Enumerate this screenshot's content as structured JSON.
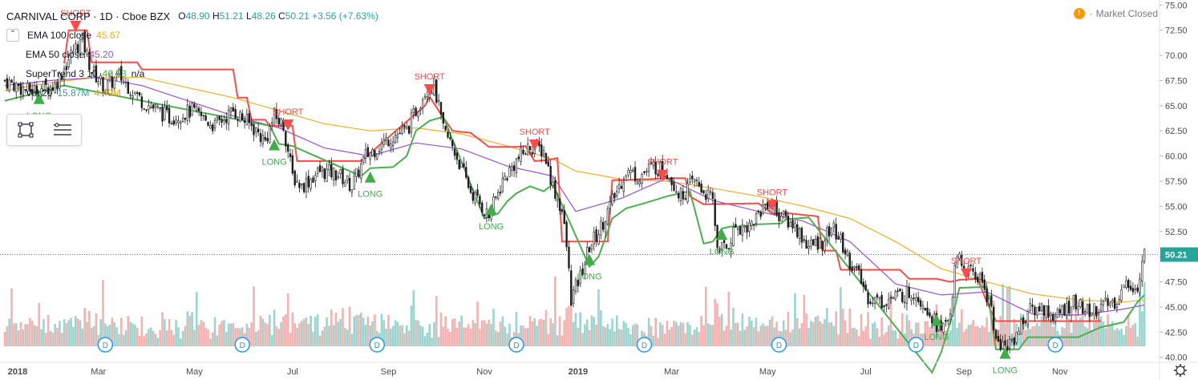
{
  "header": {
    "title": "CARNIVAL CORP · 1D · Cboe BZX",
    "ohlc": [
      {
        "label": "O",
        "value": "48.90"
      },
      {
        "label": "H",
        "value": "51.21"
      },
      {
        "label": "L",
        "value": "48.26"
      },
      {
        "label": "C",
        "value": "50.21"
      }
    ],
    "change": "+3.56 (+7.63%)"
  },
  "indicators": [
    {
      "name": "EMA 100 close",
      "value": "45.67",
      "color": "#f0b02a"
    },
    {
      "name": "EMA 50 close",
      "value": "45.20",
      "color": "#9c4fd6"
    },
    {
      "name": "SuperTrend 3 10",
      "value": "46.23",
      "value2": "n/a",
      "color": "#4caf50"
    },
    {
      "name": "Vol 20",
      "value": "15.87M",
      "value2": "4.49M",
      "color": "#26a69a",
      "color2": "#ff9800"
    }
  ],
  "market_status": {
    "label": "Market Closed",
    "icon": "alert-icon"
  },
  "colors": {
    "up": "#26a69a",
    "down": "#ef5350",
    "st_up": "#4caf50",
    "st_down": "#ff4a4a",
    "ema100": "#f0b02a",
    "ema50": "#9c4fd6",
    "last_price": "#26a69a"
  },
  "chart_data": {
    "type": "candlestick",
    "symbol": "CARNIVAL CORP",
    "interval": "1D",
    "exchange": "Cboe BZX",
    "last_price": "50.21",
    "y_axis": {
      "ticks": [
        "75.00",
        "72.50",
        "70.00",
        "67.50",
        "65.00",
        "62.50",
        "60.00",
        "57.50",
        "55.00",
        "52.50",
        "50.00",
        "47.50",
        "45.00",
        "42.50",
        "40.00"
      ],
      "range": [
        39.5,
        75.5
      ]
    },
    "x_axis": {
      "labels": [
        {
          "label": "2018",
          "bold": true,
          "t": 0
        },
        {
          "label": "Mar",
          "bold": false,
          "t": 41
        },
        {
          "label": "May",
          "bold": false,
          "t": 83
        },
        {
          "label": "Jul",
          "bold": false,
          "t": 126
        },
        {
          "label": "Sep",
          "bold": false,
          "t": 168
        },
        {
          "label": "Nov",
          "bold": false,
          "t": 210
        },
        {
          "label": "2019",
          "bold": true,
          "t": 251
        },
        {
          "label": "Mar",
          "bold": false,
          "t": 292
        },
        {
          "label": "May",
          "bold": false,
          "t": 334
        },
        {
          "label": "Jul",
          "bold": false,
          "t": 377
        },
        {
          "label": "Sep",
          "bold": false,
          "t": 420
        },
        {
          "label": "Nov",
          "bold": false,
          "t": 462
        }
      ],
      "range": [
        0,
        500
      ]
    },
    "price_path": [
      [
        0,
        67.5
      ],
      [
        10,
        66.5
      ],
      [
        22,
        67.0
      ],
      [
        30,
        70.5
      ],
      [
        34,
        71.5
      ],
      [
        38,
        68.5
      ],
      [
        44,
        66.8
      ],
      [
        50,
        68.0
      ],
      [
        60,
        65.5
      ],
      [
        72,
        63.8
      ],
      [
        82,
        64.5
      ],
      [
        92,
        63.0
      ],
      [
        100,
        64.5
      ],
      [
        108,
        63.0
      ],
      [
        114,
        61.5
      ],
      [
        118,
        64.0
      ],
      [
        122,
        63.0
      ],
      [
        126,
        58.0
      ],
      [
        130,
        57.0
      ],
      [
        138,
        58.5
      ],
      [
        146,
        58.2
      ],
      [
        152,
        57.0
      ],
      [
        158,
        60.0
      ],
      [
        164,
        61.0
      ],
      [
        170,
        62.0
      ],
      [
        176,
        62.5
      ],
      [
        180,
        64.5
      ],
      [
        184,
        66.5
      ],
      [
        188,
        67.0
      ],
      [
        192,
        62.5
      ],
      [
        196,
        61.0
      ],
      [
        204,
        56.5
      ],
      [
        212,
        54.0
      ],
      [
        218,
        57.5
      ],
      [
        224,
        59.5
      ],
      [
        230,
        61.0
      ],
      [
        236,
        60.5
      ],
      [
        240,
        57.0
      ],
      [
        244,
        54.5
      ],
      [
        246,
        51.0
      ],
      [
        248,
        45.8
      ],
      [
        252,
        48.0
      ],
      [
        256,
        51.0
      ],
      [
        260,
        52.5
      ],
      [
        266,
        55.5
      ],
      [
        272,
        58.5
      ],
      [
        278,
        58.0
      ],
      [
        284,
        59.0
      ],
      [
        290,
        58.5
      ],
      [
        296,
        56.0
      ],
      [
        302,
        57.5
      ],
      [
        306,
        56.5
      ],
      [
        310,
        55.5
      ],
      [
        312,
        51.0
      ],
      [
        316,
        50.8
      ],
      [
        320,
        53.0
      ],
      [
        326,
        53.0
      ],
      [
        334,
        55.5
      ],
      [
        340,
        54.0
      ],
      [
        346,
        53.0
      ],
      [
        352,
        51.0
      ],
      [
        358,
        51.5
      ],
      [
        362,
        53.0
      ],
      [
        366,
        51.5
      ],
      [
        370,
        49.5
      ],
      [
        374,
        48.0
      ],
      [
        378,
        46.0
      ],
      [
        384,
        45.5
      ],
      [
        390,
        46.0
      ],
      [
        398,
        46.5
      ],
      [
        404,
        45.0
      ],
      [
        410,
        42.5
      ],
      [
        414,
        44.5
      ],
      [
        416,
        48.5
      ],
      [
        418,
        50.0
      ],
      [
        420,
        48.5
      ],
      [
        424,
        48.5
      ],
      [
        428,
        47.5
      ],
      [
        432,
        45.0
      ],
      [
        434,
        41.5
      ],
      [
        438,
        41.0
      ],
      [
        442,
        42.0
      ],
      [
        448,
        44.5
      ],
      [
        454,
        45.0
      ],
      [
        460,
        44.0
      ],
      [
        468,
        45.5
      ],
      [
        474,
        44.5
      ],
      [
        480,
        45.0
      ],
      [
        486,
        45.5
      ],
      [
        492,
        47.5
      ],
      [
        496,
        46.5
      ],
      [
        499,
        50.2
      ]
    ],
    "volume": {
      "max_bar": "~25M",
      "last_volume": "15.87M",
      "ma20": "4.49M"
    },
    "supertrend": {
      "down_path": [
        [
          26,
          69.2
        ],
        [
          28,
          72.5
        ],
        [
          36,
          72.5
        ],
        [
          38,
          69.3
        ],
        [
          58,
          69.3
        ],
        [
          60,
          68.6
        ],
        [
          100,
          68.6
        ],
        [
          102,
          65.8
        ],
        [
          106,
          65.8
        ],
        [
          108,
          63.6
        ],
        [
          114,
          63.6
        ],
        [
          116,
          63.0
        ],
        [
          126,
          63.0
        ],
        [
          128,
          59.5
        ],
        [
          156,
          59.5
        ],
        [
          184,
          65.0
        ],
        [
          186,
          65.9
        ],
        [
          190,
          64.5
        ],
        [
          196,
          62.5
        ],
        [
          204,
          62.3
        ],
        [
          212,
          60.9
        ],
        [
          224,
          60.9
        ],
        [
          228,
          61.0
        ],
        [
          232,
          59.5
        ],
        [
          238,
          59.6
        ],
        [
          242,
          59.8
        ],
        [
          244,
          51.5
        ],
        [
          264,
          51.5
        ],
        [
          266,
          57.6
        ],
        [
          270,
          57.6
        ],
        [
          282,
          57.7
        ],
        [
          290,
          57.8
        ],
        [
          298,
          57.8
        ],
        [
          300,
          56.0
        ],
        [
          306,
          55.2
        ],
        [
          330,
          55.3
        ],
        [
          336,
          54.3
        ],
        [
          344,
          54.3
        ],
        [
          356,
          54.0
        ],
        [
          358,
          50.6
        ],
        [
          364,
          50.6
        ],
        [
          366,
          48.7
        ],
        [
          392,
          48.7
        ],
        [
          396,
          47.8
        ],
        [
          408,
          47.8
        ],
        [
          414,
          47.5
        ],
        [
          418,
          47.7
        ],
        [
          426,
          47.8
        ],
        [
          430,
          45.5
        ],
        [
          434,
          43.6
        ],
        [
          480,
          43.6
        ]
      ],
      "up_path": [
        [
          0,
          65.5
        ],
        [
          18,
          66.5
        ],
        [
          22,
          66.8
        ],
        [
          26,
          67.0
        ],
        [
          116,
          63.0
        ],
        [
          120,
          61.2
        ],
        [
          126,
          61.0
        ],
        [
          156,
          58.0
        ],
        [
          160,
          58.8
        ],
        [
          170,
          58.9
        ],
        [
          176,
          60.0
        ],
        [
          180,
          62.5
        ],
        [
          186,
          63.5
        ],
        [
          192,
          63.9
        ],
        [
          210,
          53.8
        ],
        [
          216,
          54.3
        ],
        [
          220,
          55.5
        ],
        [
          224,
          56.3
        ],
        [
          230,
          57.0
        ],
        [
          236,
          56.5
        ],
        [
          240,
          57.2
        ],
        [
          256,
          49.0
        ],
        [
          260,
          50.0
        ],
        [
          266,
          53.8
        ],
        [
          272,
          54.8
        ],
        [
          280,
          55.3
        ],
        [
          290,
          56.0
        ],
        [
          300,
          56.5
        ],
        [
          306,
          51.3
        ],
        [
          310,
          51.5
        ],
        [
          314,
          52.8
        ],
        [
          318,
          53.0
        ],
        [
          324,
          53.0
        ],
        [
          328,
          53.2
        ],
        [
          340,
          53.3
        ],
        [
          342,
          53.7
        ],
        [
          352,
          53.9
        ],
        [
          406,
          38.5
        ],
        [
          410,
          40.5
        ],
        [
          416,
          45.0
        ],
        [
          418,
          46.9
        ],
        [
          430,
          47.0
        ],
        [
          434,
          40.8
        ],
        [
          444,
          40.8
        ],
        [
          448,
          42.0
        ],
        [
          470,
          42.0
        ],
        [
          480,
          43.0
        ],
        [
          490,
          43.5
        ],
        [
          496,
          45.5
        ],
        [
          499,
          46.2
        ]
      ]
    },
    "ema100_path": [
      [
        0,
        66.5
      ],
      [
        20,
        67.3
      ],
      [
        40,
        67.8
      ],
      [
        60,
        67.8
      ],
      [
        80,
        66.8
      ],
      [
        100,
        65.8
      ],
      [
        120,
        64.5
      ],
      [
        140,
        63.2
      ],
      [
        160,
        62.5
      ],
      [
        180,
        62.8
      ],
      [
        200,
        62.2
      ],
      [
        220,
        61.0
      ],
      [
        240,
        59.7
      ],
      [
        250,
        58.5
      ],
      [
        270,
        57.7
      ],
      [
        290,
        57.5
      ],
      [
        310,
        56.8
      ],
      [
        330,
        56.0
      ],
      [
        350,
        55.0
      ],
      [
        370,
        53.8
      ],
      [
        390,
        51.5
      ],
      [
        410,
        48.8
      ],
      [
        430,
        47.5
      ],
      [
        450,
        46.3
      ],
      [
        470,
        45.7
      ],
      [
        490,
        45.5
      ],
      [
        499,
        45.7
      ]
    ],
    "ema50_path": [
      [
        0,
        67.0
      ],
      [
        20,
        67.5
      ],
      [
        40,
        67.8
      ],
      [
        60,
        67.0
      ],
      [
        80,
        65.5
      ],
      [
        100,
        64.0
      ],
      [
        120,
        62.8
      ],
      [
        140,
        60.8
      ],
      [
        160,
        60.0
      ],
      [
        180,
        61.3
      ],
      [
        200,
        60.7
      ],
      [
        220,
        59.0
      ],
      [
        240,
        58.0
      ],
      [
        250,
        54.5
      ],
      [
        270,
        55.8
      ],
      [
        290,
        57.8
      ],
      [
        310,
        55.6
      ],
      [
        330,
        54.5
      ],
      [
        350,
        53.5
      ],
      [
        370,
        51.5
      ],
      [
        390,
        47.3
      ],
      [
        410,
        46.2
      ],
      [
        430,
        46.5
      ],
      [
        450,
        44.3
      ],
      [
        470,
        44.2
      ],
      [
        490,
        44.8
      ],
      [
        499,
        45.2
      ]
    ],
    "signals": [
      {
        "type": "LONG",
        "t": 15,
        "price": 65.8
      },
      {
        "type": "SHORT",
        "t": 31,
        "price": 72.8
      },
      {
        "type": "LONG",
        "t": 118,
        "price": 61.2
      },
      {
        "type": "SHORT",
        "t": 124,
        "price": 63.0
      },
      {
        "type": "LONG",
        "t": 160,
        "price": 58.0
      },
      {
        "type": "SHORT",
        "t": 186,
        "price": 66.5
      },
      {
        "type": "LONG",
        "t": 213,
        "price": 54.8
      },
      {
        "type": "SHORT",
        "t": 232,
        "price": 61.0
      },
      {
        "type": "LONG",
        "t": 256,
        "price": 49.8
      },
      {
        "type": "SHORT",
        "t": 288,
        "price": 58.0
      },
      {
        "type": "LONG",
        "t": 314,
        "price": 52.3
      },
      {
        "type": "SHORT",
        "t": 336,
        "price": 55.0
      },
      {
        "type": "LONG",
        "t": 408,
        "price": 43.8
      },
      {
        "type": "SHORT",
        "t": 421,
        "price": 48.2
      },
      {
        "type": "LONG",
        "t": 438,
        "price": 40.5
      }
    ],
    "dividends": [
      {
        "t": 44
      },
      {
        "t": 104
      },
      {
        "t": 163
      },
      {
        "t": 224
      },
      {
        "t": 280
      },
      {
        "t": 339
      },
      {
        "t": 399
      },
      {
        "t": 460
      }
    ],
    "dividend_label": "D",
    "grid": false
  }
}
